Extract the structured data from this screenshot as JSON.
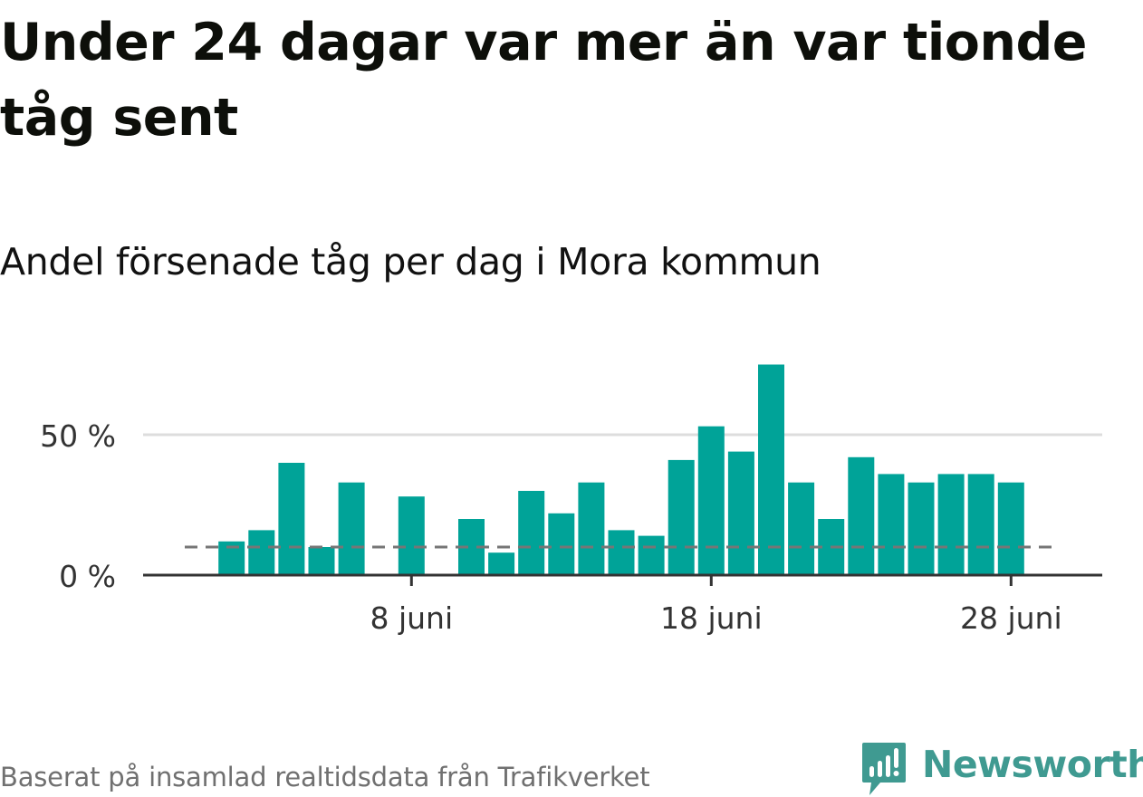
{
  "header": {
    "title": "Under 24 dagar var mer än var tionde tåg sent",
    "subtitle": "Andel försenade tåg per dag i Mora kommun"
  },
  "footer": {
    "source": "Baserat på insamlad realtidsdata från Trafikverket",
    "brand": "Newsworthy"
  },
  "colors": {
    "bar": "#00a398",
    "threshold": "#767676",
    "brand": "#3f9a91"
  },
  "chart_data": {
    "type": "bar",
    "x": [
      "1 juni",
      "2 juni",
      "3 juni",
      "4 juni",
      "5 juni",
      "6 juni",
      "7 juni",
      "8 juni",
      "9 juni",
      "10 juni",
      "11 juni",
      "12 juni",
      "13 juni",
      "14 juni",
      "15 juni",
      "16 juni",
      "17 juni",
      "18 juni",
      "19 juni",
      "20 juni",
      "21 juni",
      "22 juni",
      "23 juni",
      "24 juni",
      "25 juni",
      "26 juni",
      "27 juni",
      "28 juni",
      "29 juni",
      "30 juni"
    ],
    "values": [
      null,
      12,
      16,
      40,
      10,
      33,
      null,
      28,
      null,
      20,
      8,
      30,
      22,
      33,
      16,
      14,
      41,
      53,
      44,
      75,
      33,
      20,
      42,
      36,
      33,
      36,
      36,
      33,
      null,
      null
    ],
    "unit": "%",
    "ylim": [
      0,
      80
    ],
    "yticks": [
      {
        "value": 0,
        "label": "0 %"
      },
      {
        "value": 50,
        "label": "50 %"
      }
    ],
    "xticks": [
      {
        "x": "8 juni",
        "label": "8 juni"
      },
      {
        "x": "18 juni",
        "label": "18 juni"
      },
      {
        "x": "28 juni",
        "label": "28 juni"
      }
    ],
    "threshold": 10,
    "grid": true,
    "legend": "none"
  }
}
